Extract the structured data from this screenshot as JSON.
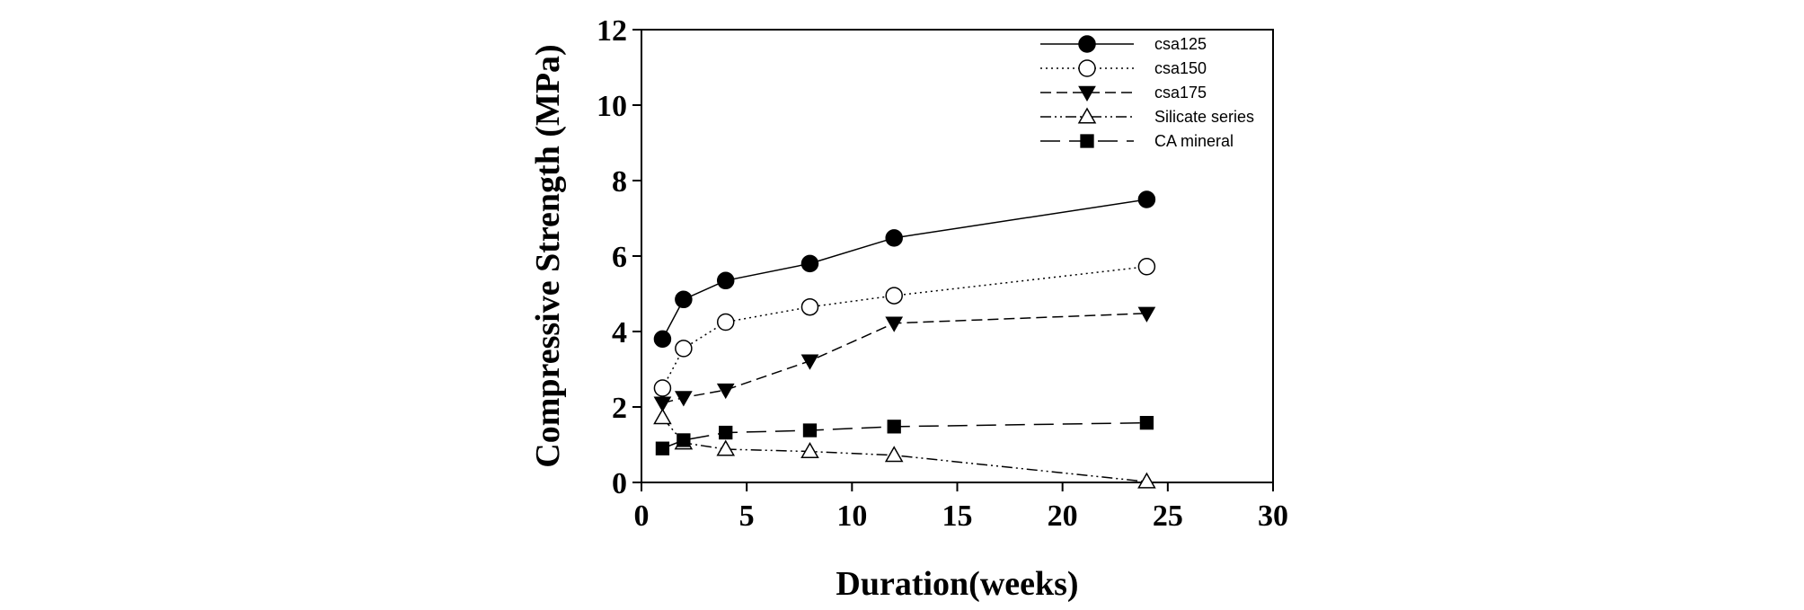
{
  "chart_data": {
    "type": "line",
    "xlabel": "Duration(weeks)",
    "ylabel": "Compressive Strength (MPa)",
    "xlim": [
      0,
      30
    ],
    "ylim": [
      0,
      12
    ],
    "xticks": [
      0,
      5,
      10,
      15,
      20,
      25,
      30
    ],
    "yticks": [
      0,
      2,
      4,
      6,
      8,
      10,
      12
    ],
    "grid": false,
    "legend_position": "top-right",
    "x": [
      1,
      2,
      4,
      8,
      12,
      24
    ],
    "series": [
      {
        "name": "csa125",
        "values": [
          3.8,
          4.85,
          5.35,
          5.8,
          6.48,
          7.5
        ],
        "marker": "circle-filled",
        "line_style": "solid"
      },
      {
        "name": "csa150",
        "values": [
          2.5,
          3.55,
          4.25,
          4.65,
          4.95,
          5.72
        ],
        "marker": "circle-open",
        "line_style": "dotted"
      },
      {
        "name": "csa175",
        "values": [
          2.1,
          2.25,
          2.45,
          3.22,
          4.22,
          4.48
        ],
        "marker": "triangle-down-filled",
        "line_style": "dashed"
      },
      {
        "name": "Silicate series",
        "values": [
          1.72,
          1.05,
          0.88,
          0.82,
          0.72,
          0.02
        ],
        "marker": "triangle-up-open",
        "line_style": "dash-dot-dot"
      },
      {
        "name": "CA mineral",
        "values": [
          0.9,
          1.12,
          1.32,
          1.38,
          1.48,
          1.58
        ],
        "marker": "square-filled",
        "line_style": "long-dash"
      }
    ]
  }
}
